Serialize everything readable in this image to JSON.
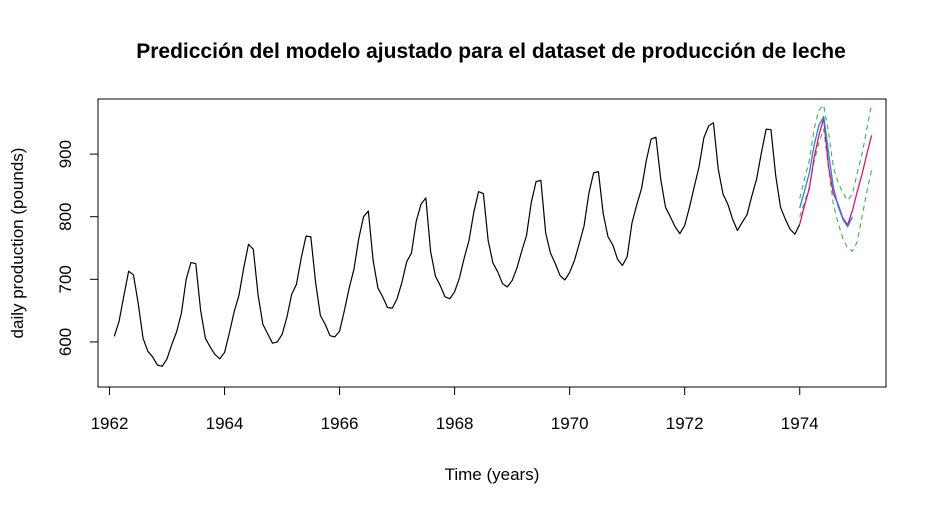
{
  "chart_data": {
    "type": "line",
    "title": "Predicción del modelo ajustado para el dataset de producción de leche",
    "xlabel": "Time (years)",
    "ylabel": "daily production (pounds)",
    "xlim": [
      1961.8,
      1975.5
    ],
    "ylim": [
      528,
      988
    ],
    "x_ticks": [
      1962,
      1964,
      1966,
      1968,
      1970,
      1972,
      1974
    ],
    "y_ticks": [
      600,
      700,
      800,
      900
    ],
    "grid": false,
    "legend": "none",
    "colors": {
      "observed": "#000000",
      "actual": "#cc1a7a",
      "fitted": "#2e7fd6",
      "interval": "#3cb44b"
    },
    "series": [
      {
        "key": "observed",
        "start": 1962.0833,
        "step": 0.083333,
        "values": [
          609,
          633,
          674,
          713,
          707,
          661,
          606,
          585,
          576,
          563,
          561,
          573,
          596,
          616,
          646,
          700,
          727,
          725,
          651,
          606,
          592,
          580,
          573,
          583,
          614,
          648,
          674,
          718,
          756,
          748,
          675,
          628,
          613,
          598,
          600,
          612,
          639,
          676,
          692,
          734,
          769,
          768,
          695,
          642,
          628,
          610,
          608,
          617,
          650,
          686,
          716,
          765,
          800,
          809,
          730,
          686,
          672,
          655,
          654,
          669,
          695,
          728,
          742,
          793,
          820,
          830,
          744,
          705,
          690,
          672,
          669,
          680,
          702,
          734,
          762,
          807,
          840,
          837,
          762,
          726,
          712,
          693,
          688,
          698,
          718,
          745,
          770,
          823,
          856,
          858,
          774,
          742,
          725,
          706,
          699,
          711,
          730,
          757,
          785,
          837,
          870,
          872,
          805,
          768,
          755,
          732,
          722,
          736,
          790,
          819,
          845,
          890,
          924,
          927,
          860,
          815,
          800,
          784,
          773,
          786,
          815,
          848,
          880,
          926,
          945,
          950,
          876,
          836,
          820,
          796,
          778,
          791,
          803,
          833,
          860,
          902,
          940,
          939,
          865,
          815,
          796,
          780,
          772,
          788
        ]
      },
      {
        "key": "actual",
        "start": 1974.0,
        "step": 0.083333,
        "values": [
          788,
          818,
          845,
          894,
          930,
          957,
          881,
          837,
          820,
          798,
          787,
          810,
          840,
          868,
          900,
          930
        ]
      },
      {
        "key": "fitted",
        "start": 1974.0,
        "step": 0.083333,
        "values": [
          814,
          841,
          870,
          914,
          946,
          960,
          903,
          848,
          817,
          796,
          784,
          800
        ]
      },
      {
        "key": "upper",
        "start": 1974.0,
        "step": 0.083333,
        "values": [
          829,
          860,
          890,
          940,
          970,
          978,
          935,
          880,
          855,
          838,
          826,
          836,
          870,
          900,
          940,
          980
        ]
      },
      {
        "key": "lower",
        "start": 1974.0,
        "step": 0.083333,
        "values": [
          800,
          823,
          847,
          888,
          918,
          940,
          878,
          820,
          790,
          765,
          750,
          745,
          760,
          800,
          840,
          875
        ]
      }
    ]
  }
}
